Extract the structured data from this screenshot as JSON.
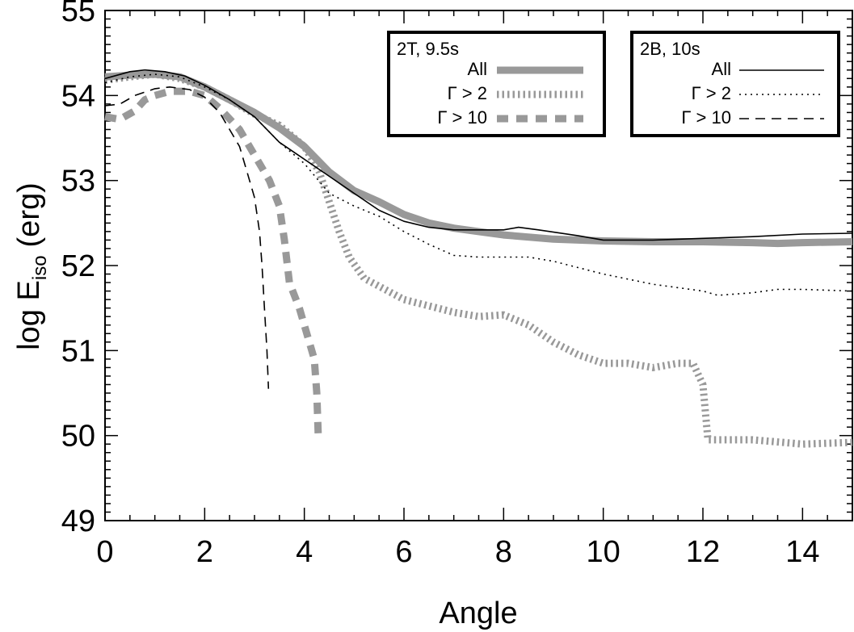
{
  "chart_data": {
    "type": "line",
    "xlabel": "Angle",
    "ylabel": "log E",
    "ylabel_subscript": "iso",
    "ylabel_unit": "(erg)",
    "xlim": [
      0,
      15
    ],
    "ylim": [
      49,
      55
    ],
    "x_ticks": [
      "0",
      "2",
      "4",
      "6",
      "8",
      "10",
      "12",
      "14"
    ],
    "y_ticks": [
      "49",
      "50",
      "51",
      "52",
      "53",
      "54",
      "55"
    ],
    "colors": {
      "gray": "#999999",
      "black": "#000000"
    },
    "legends": [
      {
        "title": "2T, 9.5s",
        "entries": [
          "All",
          "Γ > 2",
          "Γ > 10"
        ]
      },
      {
        "title": "2B, 10s",
        "entries": [
          "All",
          "Γ > 2",
          "Γ > 10"
        ]
      }
    ],
    "series": [
      {
        "group": "2T, 9.5s",
        "label": "All",
        "color": "#999999",
        "style": "solid-thick",
        "x": [
          0,
          0.5,
          1.0,
          1.5,
          2.0,
          2.5,
          3.0,
          3.5,
          4.0,
          4.5,
          5.0,
          5.5,
          6.0,
          6.5,
          7.0,
          7.5,
          8.0,
          9.0,
          10.0,
          11.0,
          12.0,
          13.0,
          13.5,
          14.0,
          15.0
        ],
        "y": [
          54.22,
          54.24,
          54.25,
          54.22,
          54.1,
          53.95,
          53.8,
          53.62,
          53.4,
          53.1,
          52.88,
          52.75,
          52.6,
          52.5,
          52.44,
          52.4,
          52.36,
          52.31,
          52.29,
          52.28,
          52.28,
          52.27,
          52.26,
          52.27,
          52.28
        ]
      },
      {
        "group": "2T, 9.5s",
        "label": "Γ > 2",
        "color": "#999999",
        "style": "dotted-thick",
        "x": [
          0,
          0.5,
          1.0,
          1.5,
          2.0,
          2.5,
          3.0,
          3.5,
          4.0,
          4.3,
          4.5,
          4.7,
          4.9,
          5.2,
          6.0,
          7.0,
          7.5,
          8.0,
          8.5,
          9.0,
          9.5,
          10.0,
          10.5,
          11.0,
          11.5,
          11.8,
          12.0,
          12.1,
          13.0,
          14.0,
          15.0
        ],
        "y": [
          54.18,
          54.22,
          54.25,
          54.2,
          54.1,
          53.95,
          53.78,
          53.65,
          53.4,
          53.1,
          52.75,
          52.4,
          52.1,
          51.85,
          51.6,
          51.45,
          51.4,
          51.42,
          51.3,
          51.1,
          50.95,
          50.85,
          50.85,
          50.8,
          50.85,
          50.85,
          50.6,
          49.95,
          49.95,
          49.9,
          49.92
        ]
      },
      {
        "group": "2T, 9.5s",
        "label": "Γ > 10",
        "color": "#999999",
        "style": "dashed-thick",
        "x": [
          0,
          0.3,
          0.6,
          0.8,
          1.0,
          1.3,
          1.7,
          2.0,
          2.3,
          2.7,
          3.0,
          3.3,
          3.5,
          3.6,
          3.7,
          3.9,
          4.1,
          4.2,
          4.25,
          4.28
        ],
        "y": [
          53.75,
          53.72,
          53.82,
          53.95,
          54.0,
          54.05,
          54.05,
          54.0,
          53.85,
          53.6,
          53.3,
          53.0,
          52.7,
          52.3,
          51.8,
          51.5,
          51.1,
          50.9,
          50.5,
          50.0
        ]
      },
      {
        "group": "2B, 10s",
        "label": "All",
        "color": "#000000",
        "style": "solid-thin",
        "x": [
          0,
          0.5,
          0.8,
          1.2,
          1.6,
          2.0,
          2.5,
          3.0,
          3.5,
          4.0,
          4.5,
          5.0,
          5.5,
          6.0,
          6.5,
          7.0,
          7.5,
          8.0,
          8.3,
          8.7,
          9.5,
          10.0,
          11.0,
          12.0,
          13.0,
          14.0,
          15.0
        ],
        "y": [
          54.2,
          54.28,
          54.3,
          54.28,
          54.23,
          54.12,
          53.95,
          53.75,
          53.45,
          53.25,
          53.05,
          52.85,
          52.65,
          52.52,
          52.45,
          52.42,
          52.42,
          52.42,
          52.45,
          52.42,
          52.35,
          52.3,
          52.3,
          52.32,
          52.34,
          52.37,
          52.38
        ]
      },
      {
        "group": "2B, 10s",
        "label": "Γ > 2",
        "color": "#000000",
        "style": "dotted-thin",
        "x": [
          0,
          0.5,
          1.0,
          1.5,
          2.0,
          2.5,
          3.0,
          3.5,
          4.0,
          4.5,
          5.0,
          5.5,
          6.0,
          6.5,
          7.0,
          7.5,
          8.0,
          8.5,
          9.0,
          10.0,
          11.0,
          12.0,
          12.3,
          13.0,
          13.5,
          14.0,
          15.0
        ],
        "y": [
          54.15,
          54.22,
          54.25,
          54.22,
          54.1,
          53.95,
          53.75,
          53.45,
          53.2,
          52.85,
          52.7,
          52.58,
          52.4,
          52.25,
          52.12,
          52.1,
          52.1,
          52.1,
          52.05,
          51.9,
          51.78,
          51.7,
          51.65,
          51.68,
          51.72,
          51.72,
          51.7
        ]
      },
      {
        "group": "2B, 10s",
        "label": "Γ > 10",
        "color": "#000000",
        "style": "dashed-thin",
        "x": [
          0,
          0.3,
          0.6,
          1.0,
          1.3,
          1.7,
          2.0,
          2.3,
          2.5,
          2.7,
          2.85,
          3.0,
          3.1,
          3.15,
          3.2,
          3.25,
          3.28
        ],
        "y": [
          53.88,
          53.9,
          54.0,
          54.08,
          54.1,
          54.07,
          53.98,
          53.8,
          53.6,
          53.4,
          53.1,
          52.8,
          52.4,
          52.0,
          51.5,
          51.0,
          50.55
        ]
      }
    ]
  }
}
